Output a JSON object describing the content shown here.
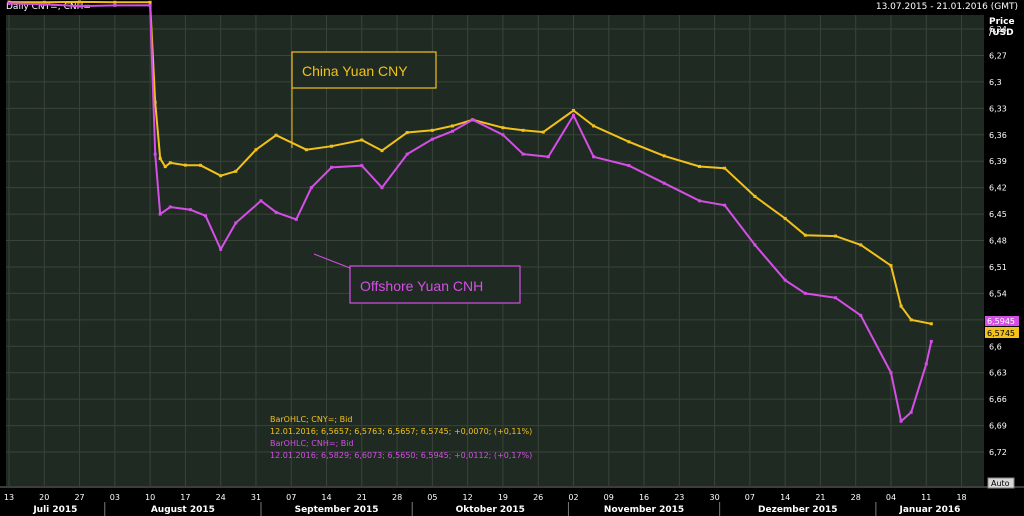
{
  "header": {
    "instruments": "Daily CNY=; CNH=",
    "date_range": "13.07.2015 - 21.01.2016 (GMT)"
  },
  "axis": {
    "price_label": "Price",
    "unit_label": "/USD",
    "auto_label": "Auto",
    "y_ticks": [
      "6,24",
      "6,27",
      "6,3",
      "6,33",
      "6,36",
      "6,39",
      "6,42",
      "6,45",
      "6,48",
      "6,51",
      "6,54",
      "6,57",
      "6,6",
      "6,63",
      "6,66",
      "6,69",
      "6,72"
    ],
    "x_day_labels": [
      "13",
      "20",
      "27",
      "03",
      "10",
      "17",
      "24",
      "31",
      "07",
      "14",
      "21",
      "28",
      "05",
      "12",
      "19",
      "26",
      "02",
      "09",
      "16",
      "23",
      "30",
      "07",
      "14",
      "21",
      "28",
      "04",
      "11",
      "18"
    ],
    "x_month_labels": [
      "Juli 2015",
      "August 2015",
      "September 2015",
      "Oktober 2015",
      "November 2015",
      "Dezember 2015",
      "Januar 2016"
    ]
  },
  "annotations": {
    "cny_label": "China Yuan CNY",
    "cnh_label": "Offshore Yuan CNH"
  },
  "info_box": {
    "line1": "BarOHLC; CNY=; Bid",
    "line2": "12.01.2016; 6,5657; 6,5763; 6,5657; 6,5745; +0,0070; (+0,11%)",
    "line3": "BarOHLC; CNH=; Bid",
    "line4": "12.01.2016; 6,5829; 6,6073; 6,5650; 6,5945; +0,0112; (+0,17%)"
  },
  "last_values": {
    "cnh": "6,5945",
    "cny": "6,5745"
  },
  "colors": {
    "background": "#000000",
    "plot_background": "#1f2a22",
    "grid": "#3a4438",
    "cny": "#f2c21b",
    "cnh": "#d54fe6",
    "info_blue": "#46c2f2"
  },
  "chart_data": {
    "type": "line",
    "title": "Daily CNY=; CNH=",
    "xlabel": "",
    "ylabel": "Price /USD",
    "y_inverted": true,
    "ylim": [
      6.225,
      6.735
    ],
    "x_range": [
      "2015-07-13",
      "2016-01-21"
    ],
    "grid": true,
    "series": [
      {
        "name": "China Yuan CNY",
        "points": [
          [
            "2015-07-13",
            6.2095
          ],
          [
            "2015-07-20",
            6.2097
          ],
          [
            "2015-07-27",
            6.2093
          ],
          [
            "2015-08-03",
            6.2097
          ],
          [
            "2015-08-10",
            6.2097
          ],
          [
            "2015-08-11",
            6.3231
          ],
          [
            "2015-08-12",
            6.387
          ],
          [
            "2015-08-13",
            6.3962
          ],
          [
            "2015-08-14",
            6.3918
          ],
          [
            "2015-08-17",
            6.3945
          ],
          [
            "2015-08-20",
            6.3947
          ],
          [
            "2015-08-24",
            6.4065
          ],
          [
            "2015-08-27",
            6.4015
          ],
          [
            "2015-08-31",
            6.377
          ],
          [
            "2015-09-04",
            6.3605
          ],
          [
            "2015-09-10",
            6.377
          ],
          [
            "2015-09-15",
            6.373
          ],
          [
            "2015-09-21",
            6.366
          ],
          [
            "2015-09-25",
            6.378
          ],
          [
            "2015-09-30",
            6.3575
          ],
          [
            "2015-10-05",
            6.355
          ],
          [
            "2015-10-09",
            6.35
          ],
          [
            "2015-10-13",
            6.343
          ],
          [
            "2015-10-19",
            6.352
          ],
          [
            "2015-10-23",
            6.355
          ],
          [
            "2015-10-27",
            6.357
          ],
          [
            "2015-11-02",
            6.3325
          ],
          [
            "2015-11-06",
            6.35
          ],
          [
            "2015-11-13",
            6.368
          ],
          [
            "2015-11-20",
            6.384
          ],
          [
            "2015-11-27",
            6.396
          ],
          [
            "2015-12-02",
            6.398
          ],
          [
            "2015-12-08",
            6.43
          ],
          [
            "2015-12-14",
            6.455
          ],
          [
            "2015-12-18",
            6.474
          ],
          [
            "2015-12-24",
            6.475
          ],
          [
            "2015-12-29",
            6.485
          ],
          [
            "2016-01-04",
            6.5085
          ],
          [
            "2016-01-06",
            6.5545
          ],
          [
            "2016-01-08",
            6.57
          ],
          [
            "2016-01-12",
            6.5745
          ]
        ]
      },
      {
        "name": "Offshore Yuan CNH",
        "points": [
          [
            "2015-07-13",
            6.211
          ],
          [
            "2015-07-20",
            6.212
          ],
          [
            "2015-07-27",
            6.214
          ],
          [
            "2015-08-03",
            6.2132
          ],
          [
            "2015-08-10",
            6.213
          ],
          [
            "2015-08-11",
            6.382
          ],
          [
            "2015-08-12",
            6.45
          ],
          [
            "2015-08-14",
            6.442
          ],
          [
            "2015-08-18",
            6.445
          ],
          [
            "2015-08-21",
            6.452
          ],
          [
            "2015-08-24",
            6.49
          ],
          [
            "2015-08-27",
            6.46
          ],
          [
            "2015-09-01",
            6.435
          ],
          [
            "2015-09-04",
            6.448
          ],
          [
            "2015-09-08",
            6.456
          ],
          [
            "2015-09-11",
            6.42
          ],
          [
            "2015-09-15",
            6.397
          ],
          [
            "2015-09-21",
            6.395
          ],
          [
            "2015-09-25",
            6.42
          ],
          [
            "2015-09-30",
            6.382
          ],
          [
            "2015-10-05",
            6.365
          ],
          [
            "2015-10-09",
            6.356
          ],
          [
            "2015-10-13",
            6.343
          ],
          [
            "2015-10-19",
            6.36
          ],
          [
            "2015-10-23",
            6.382
          ],
          [
            "2015-10-28",
            6.385
          ],
          [
            "2015-11-02",
            6.338
          ],
          [
            "2015-11-06",
            6.385
          ],
          [
            "2015-11-13",
            6.395
          ],
          [
            "2015-11-20",
            6.415
          ],
          [
            "2015-11-27",
            6.435
          ],
          [
            "2015-12-02",
            6.44
          ],
          [
            "2015-12-08",
            6.485
          ],
          [
            "2015-12-14",
            6.525
          ],
          [
            "2015-12-18",
            6.54
          ],
          [
            "2015-12-24",
            6.545
          ],
          [
            "2015-12-29",
            6.565
          ],
          [
            "2016-01-04",
            6.63
          ],
          [
            "2016-01-06",
            6.685
          ],
          [
            "2016-01-08",
            6.675
          ],
          [
            "2016-01-11",
            6.62
          ],
          [
            "2016-01-12",
            6.5945
          ]
        ]
      }
    ]
  }
}
